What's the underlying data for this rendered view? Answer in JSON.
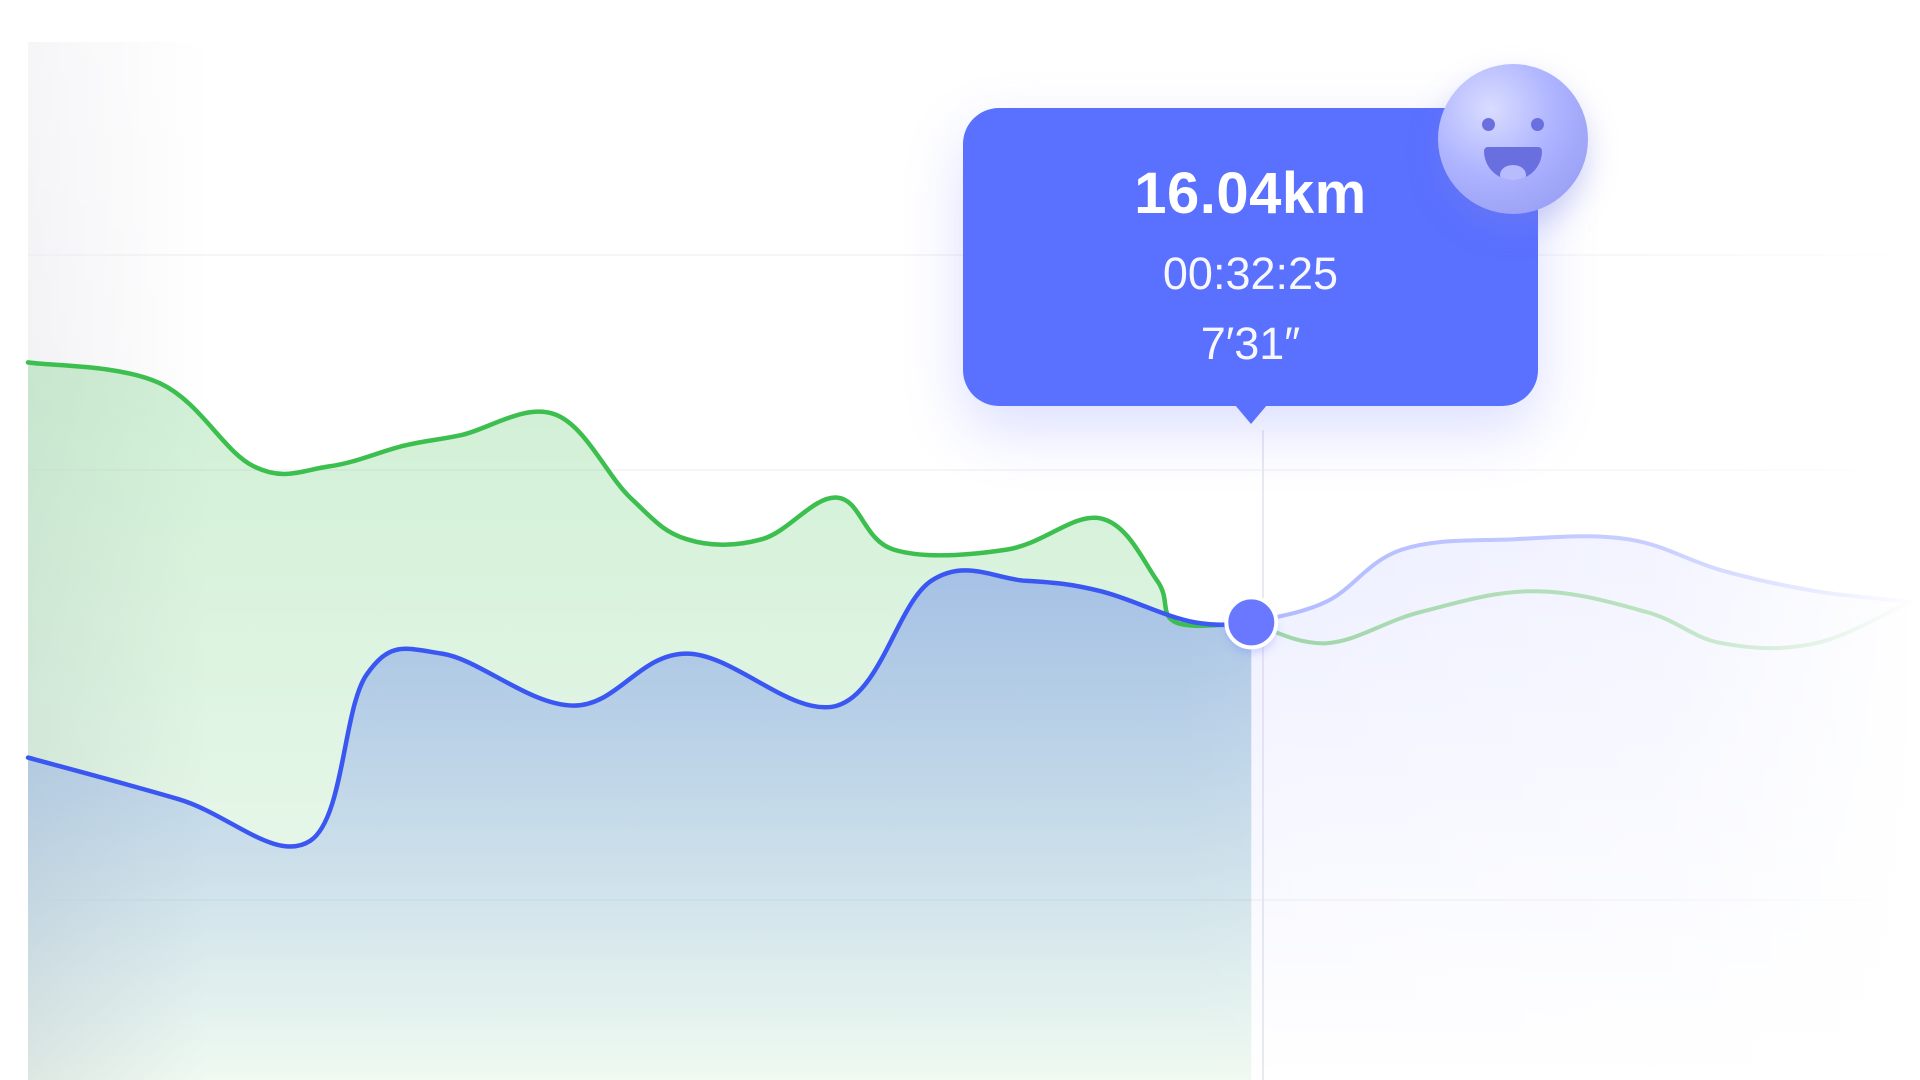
{
  "tooltip": {
    "distance": "16.04km",
    "time": "00:32:25",
    "pace": "7′31″"
  },
  "colors": {
    "green": "#3cbf4f",
    "blue": "#3b57f2",
    "tooltip": "#5a70ff",
    "marker": "#6978ff",
    "grid": "#ececf2",
    "lilac": "#a8b2ff",
    "soft_green": "#8fcf98"
  },
  "icons": {
    "smiley": "smiley-face-icon"
  },
  "chart_data": {
    "type": "area",
    "title": "",
    "xlabel": "",
    "ylabel": "",
    "grid": true,
    "legend": "none",
    "xlim": [
      0,
      1
    ],
    "ylim": [
      0,
      1
    ],
    "series": [
      {
        "name": "",
        "color": "#3cbf4f",
        "x": [
          0,
          0.07,
          0.12,
          0.16,
          0.2,
          0.23,
          0.28,
          0.32,
          0.35,
          0.39,
          0.43,
          0.46,
          0.52,
          0.57,
          0.6,
          0.61,
          0.65
        ],
        "values": [
          0.69,
          0.67,
          0.59,
          0.59,
          0.61,
          0.62,
          0.64,
          0.56,
          0.52,
          0.52,
          0.56,
          0.51,
          0.51,
          0.54,
          0.48,
          0.44,
          0.44
        ]
      },
      {
        "name": "",
        "color": "#3b57f2",
        "x": [
          0,
          0.08,
          0.15,
          0.18,
          0.22,
          0.29,
          0.35,
          0.43,
          0.48,
          0.53,
          0.57,
          0.62,
          0.66,
          0.65
        ],
        "values": [
          0.31,
          0.27,
          0.23,
          0.39,
          0.41,
          0.36,
          0.41,
          0.36,
          0.48,
          0.48,
          0.47,
          0.44,
          0.44,
          0.44
        ]
      },
      {
        "name": "",
        "color": "#a8b2ff",
        "x": [
          0.65,
          0.69,
          0.73,
          0.79,
          0.85,
          0.9,
          0.95,
          1
        ],
        "values": [
          0.44,
          0.46,
          0.51,
          0.52,
          0.52,
          0.49,
          0.47,
          0.46
        ]
      },
      {
        "name": "",
        "color": "#8fcf98",
        "x": [
          0.65,
          0.69,
          0.74,
          0.8,
          0.86,
          0.9,
          0.95,
          1
        ],
        "values": [
          0.44,
          0.42,
          0.45,
          0.47,
          0.45,
          0.42,
          0.42,
          0.46
        ]
      }
    ],
    "highlight": {
      "x": 0.65,
      "y": 0.44
    }
  }
}
